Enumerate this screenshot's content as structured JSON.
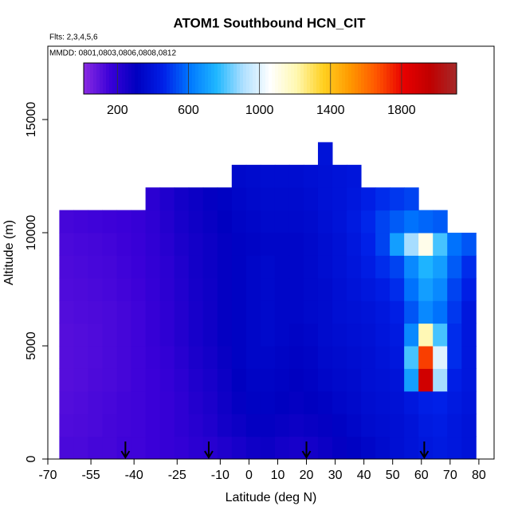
{
  "chart_data": {
    "type": "heatmap",
    "title": "ATOM1 Southbound HCN_CIT",
    "subtitle": "Flts: 2,3,4,5,6",
    "annotation": "MMDD: 0801,0803,0806,0808,0812",
    "x_label": "Latitude (deg N)",
    "y_label": "Altitude (m)",
    "xlim": [
      -70,
      85.3
    ],
    "xticks": [
      -70,
      -55,
      -40,
      -25,
      -10,
      0,
      10,
      20,
      30,
      40,
      50,
      60,
      70,
      80
    ],
    "ylim": [
      0,
      18240
    ],
    "yticks": [
      0,
      5000,
      10000,
      15000
    ],
    "clim": [
      10,
      2110
    ],
    "cticks": [
      200,
      600,
      1000,
      1400,
      1800
    ],
    "colormap": [
      "#8a2be2",
      "#3a00d8",
      "#0000c0",
      "#0020e8",
      "#0078ff",
      "#20b8ff",
      "#b0e0ff",
      "#ffffff",
      "#fff8b0",
      "#ffd020",
      "#ff9900",
      "#ff5500",
      "#e80000",
      "#c00000",
      "#a52a2a"
    ],
    "arrow_latitudes": [
      -43,
      -14,
      20,
      61
    ],
    "x_edges": [
      -66,
      -61,
      -56,
      -51,
      -46,
      -41,
      -36,
      -31,
      -26,
      -21,
      -16,
      -11,
      -6,
      -1,
      4,
      9,
      14,
      19,
      24,
      29,
      34,
      39,
      44,
      49,
      54,
      59,
      64,
      69,
      74,
      79
    ],
    "y_edges": [
      0,
      1000,
      2000,
      3000,
      4000,
      5000,
      6000,
      7000,
      8000,
      9000,
      10000,
      11000,
      12000,
      13000,
      14000
    ],
    "values": [
      [
        130,
        130,
        140,
        140,
        150,
        150,
        160,
        170,
        180,
        200,
        210,
        230,
        250,
        270,
        280,
        260,
        250,
        260,
        280,
        300,
        320,
        340,
        360,
        380,
        400,
        420,
        430,
        420,
        400
      ],
      [
        120,
        125,
        130,
        140,
        145,
        150,
        160,
        170,
        190,
        210,
        230,
        260,
        280,
        300,
        300,
        290,
        280,
        290,
        300,
        320,
        340,
        360,
        370,
        380,
        400,
        430,
        440,
        420,
        400
      ],
      [
        115,
        120,
        130,
        135,
        145,
        150,
        160,
        170,
        190,
        220,
        240,
        270,
        300,
        320,
        320,
        310,
        300,
        310,
        320,
        340,
        350,
        370,
        380,
        390,
        420,
        450,
        460,
        430,
        410
      ],
      [
        110,
        115,
        125,
        130,
        140,
        150,
        160,
        175,
        200,
        230,
        250,
        280,
        310,
        330,
        330,
        320,
        310,
        320,
        340,
        350,
        360,
        380,
        390,
        400,
        700,
        1900,
        900,
        450,
        420
      ],
      [
        110,
        115,
        120,
        130,
        140,
        150,
        165,
        180,
        210,
        240,
        260,
        290,
        320,
        340,
        340,
        330,
        320,
        330,
        350,
        360,
        370,
        380,
        400,
        420,
        800,
        1700,
        1000,
        480,
        420
      ],
      [
        110,
        115,
        120,
        130,
        140,
        150,
        170,
        190,
        220,
        250,
        270,
        300,
        320,
        340,
        350,
        340,
        330,
        340,
        360,
        370,
        380,
        390,
        410,
        430,
        650,
        1200,
        800,
        480,
        420
      ],
      [
        115,
        120,
        125,
        130,
        140,
        150,
        170,
        190,
        220,
        250,
        270,
        300,
        320,
        340,
        350,
        340,
        340,
        350,
        360,
        380,
        390,
        400,
        420,
        450,
        550,
        650,
        600,
        500,
        420
      ],
      [
        120,
        125,
        130,
        135,
        145,
        155,
        175,
        195,
        225,
        255,
        275,
        300,
        320,
        340,
        350,
        340,
        340,
        350,
        360,
        380,
        400,
        420,
        440,
        480,
        600,
        700,
        650,
        520,
        450
      ],
      [
        125,
        130,
        135,
        140,
        150,
        160,
        180,
        200,
        230,
        260,
        280,
        300,
        320,
        340,
        350,
        340,
        340,
        350,
        370,
        390,
        410,
        440,
        480,
        520,
        650,
        750,
        700,
        560,
        480
      ],
      [
        130,
        135,
        140,
        145,
        155,
        165,
        185,
        210,
        240,
        260,
        280,
        300,
        320,
        330,
        340,
        340,
        340,
        350,
        370,
        390,
        420,
        460,
        520,
        700,
        900,
        1100,
        800,
        600,
        550
      ],
      [
        140,
        145,
        150,
        155,
        160,
        170,
        190,
        220,
        250,
        270,
        290,
        310,
        330,
        340,
        350,
        350,
        350,
        360,
        380,
        400,
        430,
        470,
        520,
        560,
        600,
        580,
        560,
        null,
        null
      ],
      [
        null,
        null,
        null,
        null,
        null,
        null,
        200,
        230,
        260,
        280,
        300,
        320,
        340,
        350,
        360,
        360,
        360,
        370,
        390,
        400,
        420,
        450,
        480,
        500,
        520,
        null,
        null,
        null,
        null
      ],
      [
        null,
        null,
        null,
        null,
        null,
        null,
        null,
        null,
        null,
        null,
        null,
        null,
        350,
        360,
        370,
        370,
        370,
        380,
        390,
        400,
        410,
        null,
        null,
        null,
        null,
        null,
        null,
        null,
        null
      ],
      [
        null,
        null,
        null,
        null,
        null,
        null,
        null,
        null,
        null,
        null,
        null,
        null,
        null,
        null,
        null,
        null,
        null,
        null,
        400,
        null,
        null,
        null,
        null,
        null,
        null,
        null,
        null,
        null,
        null
      ]
    ]
  }
}
